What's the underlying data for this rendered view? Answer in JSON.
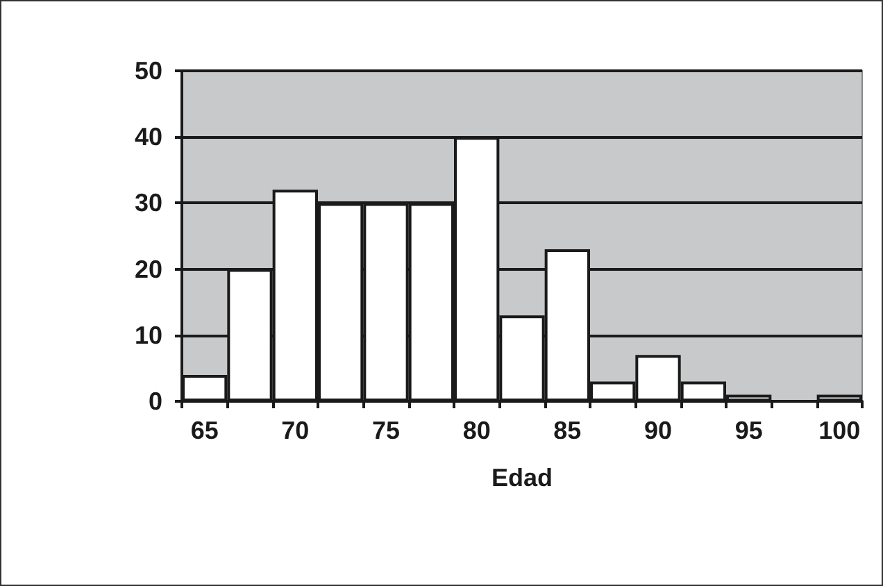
{
  "chart_data": {
    "type": "bar",
    "xlabel": "Edad",
    "categories": [
      "65",
      null,
      "70",
      null,
      "75",
      null,
      "80",
      null,
      "85",
      null,
      "90",
      null,
      "95",
      null,
      "100"
    ],
    "values": [
      4,
      20,
      32,
      30,
      30,
      30,
      40,
      13,
      23,
      3,
      7,
      3,
      1,
      0,
      1
    ],
    "color": "#ffffff",
    "ylim": [
      0,
      50
    ],
    "yticks": [
      0,
      10,
      20,
      30,
      40,
      50
    ],
    "grid": "y"
  }
}
